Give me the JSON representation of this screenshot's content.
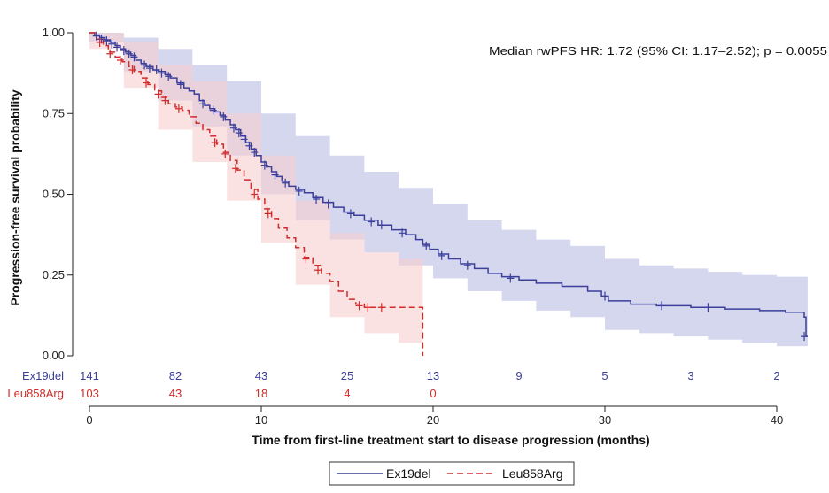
{
  "chart_data": {
    "type": "line",
    "subtype": "kaplan-meier",
    "title": "",
    "xlabel": "Time from first-line treatment start to disease progression (months)",
    "ylabel": "Progression-free survival probability",
    "xlim": [
      0,
      42
    ],
    "ylim": [
      0,
      1
    ],
    "x_ticks": [
      0,
      10,
      20,
      30,
      40
    ],
    "y_ticks": [
      0.0,
      0.25,
      0.5,
      0.75,
      1.0
    ],
    "y_tick_labels": [
      "0.00",
      "0.25",
      "0.50",
      "0.75",
      "1.00"
    ],
    "grid": false,
    "annotation": "Median rwPFS HR: 1.72 (95% CI: 1.17–2.52); p = 0.0055",
    "series": [
      {
        "name": "Ex19del",
        "color": "#3b3f9a",
        "band_color": "#c7c9ea",
        "line_style": "solid",
        "steps": [
          [
            0,
            1.0
          ],
          [
            0.3,
            0.993
          ],
          [
            0.6,
            0.985
          ],
          [
            0.9,
            0.978
          ],
          [
            1.2,
            0.97
          ],
          [
            1.5,
            0.96
          ],
          [
            1.8,
            0.95
          ],
          [
            2.1,
            0.94
          ],
          [
            2.4,
            0.93
          ],
          [
            2.7,
            0.915
          ],
          [
            3.0,
            0.905
          ],
          [
            3.3,
            0.895
          ],
          [
            3.7,
            0.885
          ],
          [
            4.0,
            0.88
          ],
          [
            4.4,
            0.87
          ],
          [
            4.7,
            0.86
          ],
          [
            5.1,
            0.845
          ],
          [
            5.5,
            0.83
          ],
          [
            5.8,
            0.82
          ],
          [
            6.1,
            0.81
          ],
          [
            6.4,
            0.79
          ],
          [
            6.7,
            0.775
          ],
          [
            7.0,
            0.765
          ],
          [
            7.3,
            0.755
          ],
          [
            7.6,
            0.745
          ],
          [
            7.9,
            0.73
          ],
          [
            8.2,
            0.715
          ],
          [
            8.5,
            0.7
          ],
          [
            8.8,
            0.68
          ],
          [
            9.1,
            0.66
          ],
          [
            9.4,
            0.64
          ],
          [
            9.7,
            0.62
          ],
          [
            10.0,
            0.6
          ],
          [
            10.3,
            0.585
          ],
          [
            10.6,
            0.57
          ],
          [
            10.9,
            0.555
          ],
          [
            11.2,
            0.54
          ],
          [
            11.6,
            0.525
          ],
          [
            12.0,
            0.515
          ],
          [
            12.5,
            0.505
          ],
          [
            13.0,
            0.49
          ],
          [
            13.6,
            0.475
          ],
          [
            14.2,
            0.46
          ],
          [
            14.8,
            0.445
          ],
          [
            15.4,
            0.435
          ],
          [
            16.0,
            0.42
          ],
          [
            16.8,
            0.405
          ],
          [
            17.6,
            0.39
          ],
          [
            18.4,
            0.375
          ],
          [
            19.0,
            0.36
          ],
          [
            19.4,
            0.345
          ],
          [
            19.8,
            0.33
          ],
          [
            20.3,
            0.315
          ],
          [
            20.9,
            0.3
          ],
          [
            21.6,
            0.285
          ],
          [
            22.4,
            0.27
          ],
          [
            23.2,
            0.255
          ],
          [
            24.0,
            0.245
          ],
          [
            25.0,
            0.235
          ],
          [
            26.0,
            0.225
          ],
          [
            27.5,
            0.215
          ],
          [
            29.0,
            0.2
          ],
          [
            29.8,
            0.185
          ],
          [
            30.2,
            0.17
          ],
          [
            31.5,
            0.16
          ],
          [
            33.0,
            0.155
          ],
          [
            35.0,
            0.15
          ],
          [
            37.0,
            0.145
          ],
          [
            39.0,
            0.14
          ],
          [
            40.5,
            0.135
          ],
          [
            41.6,
            0.12
          ],
          [
            41.7,
            0.06
          ],
          [
            41.8,
            0.06
          ]
        ],
        "ci_upper": [
          [
            0,
            1.0
          ],
          [
            2,
            0.985
          ],
          [
            4,
            0.95
          ],
          [
            6,
            0.9
          ],
          [
            8,
            0.85
          ],
          [
            10,
            0.75
          ],
          [
            12,
            0.68
          ],
          [
            14,
            0.62
          ],
          [
            16,
            0.57
          ],
          [
            18,
            0.52
          ],
          [
            20,
            0.47
          ],
          [
            22,
            0.42
          ],
          [
            24,
            0.39
          ],
          [
            26,
            0.36
          ],
          [
            28,
            0.34
          ],
          [
            30,
            0.3
          ],
          [
            32,
            0.28
          ],
          [
            34,
            0.27
          ],
          [
            36,
            0.26
          ],
          [
            38,
            0.25
          ],
          [
            40,
            0.245
          ],
          [
            41.8,
            0.24
          ]
        ],
        "ci_lower": [
          [
            0,
            0.97
          ],
          [
            2,
            0.88
          ],
          [
            4,
            0.79
          ],
          [
            6,
            0.71
          ],
          [
            8,
            0.62
          ],
          [
            10,
            0.5
          ],
          [
            12,
            0.42
          ],
          [
            14,
            0.36
          ],
          [
            16,
            0.32
          ],
          [
            18,
            0.28
          ],
          [
            20,
            0.24
          ],
          [
            22,
            0.2
          ],
          [
            24,
            0.17
          ],
          [
            26,
            0.14
          ],
          [
            28,
            0.12
          ],
          [
            30,
            0.08
          ],
          [
            32,
            0.07
          ],
          [
            34,
            0.06
          ],
          [
            36,
            0.05
          ],
          [
            38,
            0.04
          ],
          [
            40,
            0.03
          ],
          [
            41.8,
            0.02
          ]
        ],
        "censors": [
          [
            0.4,
            0.99
          ],
          [
            0.7,
            0.98
          ],
          [
            1.0,
            0.975
          ],
          [
            1.3,
            0.965
          ],
          [
            1.6,
            0.955
          ],
          [
            2.0,
            0.945
          ],
          [
            2.3,
            0.935
          ],
          [
            2.6,
            0.925
          ],
          [
            3.2,
            0.9
          ],
          [
            3.5,
            0.89
          ],
          [
            3.9,
            0.885
          ],
          [
            4.2,
            0.875
          ],
          [
            4.6,
            0.865
          ],
          [
            5.3,
            0.84
          ],
          [
            6.6,
            0.78
          ],
          [
            7.2,
            0.76
          ],
          [
            7.8,
            0.74
          ],
          [
            8.4,
            0.705
          ],
          [
            8.7,
            0.69
          ],
          [
            9.0,
            0.67
          ],
          [
            9.3,
            0.65
          ],
          [
            9.6,
            0.63
          ],
          [
            10.2,
            0.59
          ],
          [
            10.8,
            0.56
          ],
          [
            11.4,
            0.535
          ],
          [
            12.2,
            0.51
          ],
          [
            13.2,
            0.485
          ],
          [
            13.9,
            0.47
          ],
          [
            15.2,
            0.44
          ],
          [
            16.4,
            0.415
          ],
          [
            17.0,
            0.405
          ],
          [
            18.2,
            0.38
          ],
          [
            19.6,
            0.34
          ],
          [
            20.5,
            0.31
          ],
          [
            22.0,
            0.28
          ],
          [
            24.5,
            0.24
          ],
          [
            30.0,
            0.185
          ],
          [
            33.3,
            0.155
          ],
          [
            36.0,
            0.15
          ],
          [
            41.6,
            0.06
          ]
        ]
      },
      {
        "name": "Leu858Arg",
        "color": "#d32b2b",
        "band_color": "#f9cfcf",
        "line_style": "dashed",
        "steps": [
          [
            0,
            1.0
          ],
          [
            0.4,
            0.98
          ],
          [
            0.8,
            0.96
          ],
          [
            1.1,
            0.94
          ],
          [
            1.5,
            0.925
          ],
          [
            1.9,
            0.91
          ],
          [
            2.3,
            0.895
          ],
          [
            2.6,
            0.88
          ],
          [
            3.0,
            0.86
          ],
          [
            3.4,
            0.84
          ],
          [
            3.8,
            0.82
          ],
          [
            4.2,
            0.8
          ],
          [
            4.6,
            0.78
          ],
          [
            5.0,
            0.77
          ],
          [
            5.4,
            0.76
          ],
          [
            5.8,
            0.74
          ],
          [
            6.2,
            0.72
          ],
          [
            6.6,
            0.7
          ],
          [
            7.0,
            0.68
          ],
          [
            7.4,
            0.655
          ],
          [
            7.8,
            0.63
          ],
          [
            8.2,
            0.605
          ],
          [
            8.6,
            0.575
          ],
          [
            9.0,
            0.545
          ],
          [
            9.4,
            0.515
          ],
          [
            9.8,
            0.485
          ],
          [
            10.2,
            0.455
          ],
          [
            10.6,
            0.425
          ],
          [
            11.0,
            0.395
          ],
          [
            11.5,
            0.365
          ],
          [
            12.0,
            0.335
          ],
          [
            12.5,
            0.305
          ],
          [
            13.0,
            0.28
          ],
          [
            13.5,
            0.255
          ],
          [
            14.0,
            0.23
          ],
          [
            14.5,
            0.2
          ],
          [
            15.0,
            0.175
          ],
          [
            15.5,
            0.16
          ],
          [
            16.0,
            0.15
          ],
          [
            19.0,
            0.15
          ],
          [
            19.4,
            0.0
          ]
        ],
        "ci_upper": [
          [
            0,
            1.0
          ],
          [
            2,
            0.97
          ],
          [
            4,
            0.9
          ],
          [
            6,
            0.85
          ],
          [
            8,
            0.75
          ],
          [
            10,
            0.62
          ],
          [
            12,
            0.48
          ],
          [
            14,
            0.38
          ],
          [
            16,
            0.32
          ],
          [
            18,
            0.3
          ],
          [
            19.4,
            0.29
          ]
        ],
        "ci_lower": [
          [
            0,
            0.95
          ],
          [
            2,
            0.83
          ],
          [
            4,
            0.7
          ],
          [
            6,
            0.6
          ],
          [
            8,
            0.48
          ],
          [
            10,
            0.35
          ],
          [
            12,
            0.22
          ],
          [
            14,
            0.12
          ],
          [
            16,
            0.07
          ],
          [
            18,
            0.04
          ],
          [
            19.4,
            0.02
          ]
        ],
        "censors": [
          [
            0.6,
            0.97
          ],
          [
            1.2,
            0.935
          ],
          [
            1.8,
            0.915
          ],
          [
            2.5,
            0.885
          ],
          [
            3.3,
            0.845
          ],
          [
            4.0,
            0.81
          ],
          [
            4.4,
            0.79
          ],
          [
            5.2,
            0.765
          ],
          [
            7.3,
            0.66
          ],
          [
            7.9,
            0.625
          ],
          [
            8.5,
            0.58
          ],
          [
            9.6,
            0.5
          ],
          [
            10.4,
            0.44
          ],
          [
            12.6,
            0.3
          ],
          [
            13.3,
            0.265
          ],
          [
            15.7,
            0.155
          ],
          [
            16.2,
            0.15
          ],
          [
            17.0,
            0.15
          ]
        ]
      }
    ],
    "risk_table": {
      "times": [
        0,
        5,
        10,
        15,
        20,
        25,
        30,
        35,
        40
      ],
      "rows": [
        {
          "label": "Ex19del",
          "color": "#3b3f9a",
          "counts": [
            "141",
            "82",
            "43",
            "25",
            "13",
            "9",
            "5",
            "3",
            "2"
          ]
        },
        {
          "label": "Leu858Arg",
          "color": "#d32b2b",
          "counts": [
            "103",
            "43",
            "18",
            "4",
            "0",
            "",
            "",
            "",
            ""
          ]
        }
      ]
    },
    "legend": {
      "position": "bottom-center",
      "items": [
        {
          "label": "Ex19del",
          "color": "#3b3f9a",
          "line_style": "solid"
        },
        {
          "label": "Leu858Arg",
          "color": "#d32b2b",
          "line_style": "dashed"
        }
      ]
    }
  }
}
